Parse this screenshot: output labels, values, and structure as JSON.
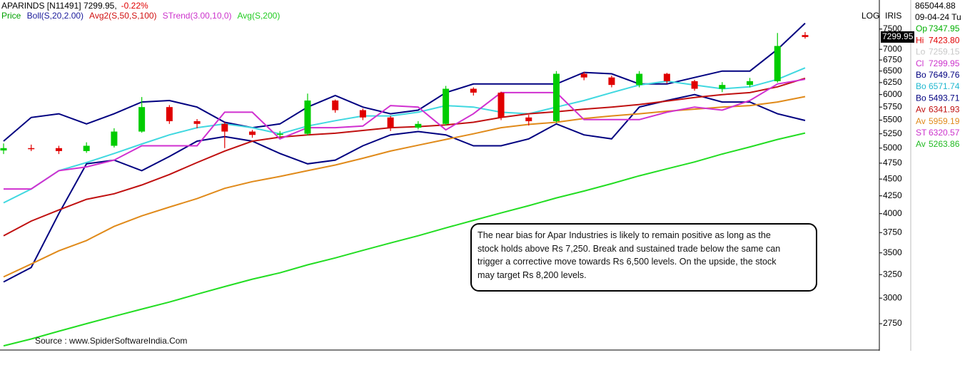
{
  "chart_data": {
    "type": "candlestick",
    "title": "APARINDS [N11491] 7299.95,",
    "change": "-0.22%",
    "scale_label": "LOG",
    "source_label": "IRIS",
    "log": true,
    "ylim": [
      2520,
      8280
    ],
    "yticks": [
      2750,
      3000,
      3250,
      3500,
      3750,
      4000,
      4250,
      4500,
      4750,
      5000,
      5250,
      5500,
      5750,
      6000,
      6250,
      6500,
      6750,
      7000,
      7500
    ],
    "price_badge": "7299.95",
    "candles": {
      "name": "Price",
      "color": "#00a000",
      "up_color": "#00cc00",
      "down_color": "#e00000",
      "open": [
        4960,
        5000,
        5000,
        4950,
        5040,
        5290,
        5750,
        5480,
        5430,
        5290,
        5230,
        5250,
        5880,
        5690,
        5550,
        5360,
        5430,
        6120,
        6040,
        5550,
        5480,
        6440,
        6360,
        6200,
        6440,
        6280,
        6120,
        6200,
        6280,
        7347.95
      ],
      "high": [
        5080,
        5060,
        5040,
        5100,
        5350,
        5950,
        5790,
        5520,
        5460,
        5320,
        5300,
        6020,
        5900,
        5720,
        5580,
        5480,
        6180,
        6150,
        6060,
        5600,
        6500,
        6480,
        6400,
        6500,
        6460,
        6310,
        6260,
        6350,
        7400,
        7423.8
      ],
      "low": [
        4900,
        4950,
        4900,
        4920,
        5010,
        5270,
        5430,
        5350,
        5000,
        5180,
        5190,
        5220,
        5640,
        5500,
        5300,
        5330,
        5400,
        5980,
        5500,
        5400,
        5450,
        6300,
        6150,
        6150,
        6230,
        6080,
        6050,
        6150,
        6250,
        7259.15
      ],
      "close": [
        5000,
        5000,
        4950,
        5040,
        5290,
        5750,
        5480,
        5430,
        5290,
        5230,
        5250,
        5880,
        5690,
        5550,
        5360,
        5430,
        6120,
        6040,
        5550,
        5480,
        6440,
        6360,
        6200,
        6440,
        6280,
        6120,
        6200,
        6280,
        7080,
        7299.95
      ]
    },
    "series": [
      {
        "name": "Boll(S,20,2.00)",
        "color": "#1a1a9a",
        "lines": [
          {
            "color": "#000080",
            "values": [
              5120,
              5550,
              5620,
              5430,
              5620,
              5850,
              5880,
              5750,
              5460,
              5360,
              5430,
              5750,
              5980,
              5750,
              5620,
              5690,
              6040,
              6220,
              6220,
              6220,
              6220,
              6470,
              6440,
              6220,
              6220,
              6360,
              6500,
              6500,
              7000,
              7649.76
            ]
          },
          {
            "color": "#40d8e0",
            "values": [
              4150,
              4350,
              4630,
              4760,
              4910,
              5070,
              5230,
              5360,
              5430,
              5360,
              5250,
              5390,
              5490,
              5580,
              5580,
              5650,
              5780,
              5750,
              5650,
              5620,
              5750,
              5880,
              6040,
              6200,
              6280,
              6200,
              6120,
              6160,
              6320,
              6571.74
            ]
          },
          {
            "color": "#000080",
            "values": [
              3170,
              3330,
              4000,
              4740,
              4800,
              4630,
              4860,
              5120,
              5200,
              5120,
              4910,
              4740,
              4800,
              5040,
              5230,
              5290,
              5230,
              5040,
              5040,
              5160,
              5430,
              5230,
              5160,
              5750,
              5880,
              6000,
              5850,
              5850,
              5620,
              5493.71
            ]
          }
        ]
      },
      {
        "name": "Avg2(S,50,S,100)",
        "color": "#d01010",
        "lines": [
          {
            "color": "#c01010",
            "values": [
              3710,
              3900,
              4050,
              4200,
              4280,
              4410,
              4570,
              4760,
              4950,
              5120,
              5190,
              5230,
              5260,
              5310,
              5360,
              5380,
              5410,
              5460,
              5550,
              5620,
              5660,
              5710,
              5750,
              5800,
              5870,
              5940,
              6000,
              6040,
              6160,
              6341.93
            ]
          },
          {
            "color": "#e08a1a",
            "values": [
              3225,
              3370,
              3525,
              3650,
              3830,
              3970,
              4090,
              4210,
              4360,
              4460,
              4540,
              4630,
              4720,
              4830,
              4950,
              5050,
              5150,
              5250,
              5360,
              5420,
              5460,
              5530,
              5580,
              5620,
              5670,
              5710,
              5750,
              5780,
              5850,
              5959.19
            ]
          }
        ]
      },
      {
        "name": "STrend(3.00,10,0)",
        "color": "#cc33cc",
        "lines": [
          {
            "color": "#d030d0",
            "values": [
              4350,
              4350,
              4630,
              4690,
              4800,
              5040,
              5040,
              5040,
              5650,
              5650,
              5160,
              5360,
              5360,
              5390,
              5780,
              5750,
              5320,
              5620,
              6040,
              6040,
              6040,
              5510,
              5510,
              5510,
              5650,
              5750,
              5690,
              5880,
              6220,
              6320.57
            ]
          }
        ]
      },
      {
        "name": "Avg(S,200)",
        "color": "#22cc22",
        "lines": [
          {
            "color": "#22dd22",
            "values": [
              2550,
              2610,
              2680,
              2750,
              2820,
              2890,
              2960,
              3040,
              3120,
              3200,
              3270,
              3360,
              3440,
              3530,
              3620,
              3710,
              3810,
              3910,
              4010,
              4110,
              4220,
              4320,
              4430,
              4550,
              4660,
              4770,
              4900,
              5020,
              5150,
              5263.86
            ]
          }
        ]
      }
    ]
  },
  "info_panel": {
    "volume": "865044.88",
    "date": "09-04-24 Tu",
    "rows": [
      {
        "label": "Op",
        "value": "7347.95",
        "color": "#00b000"
      },
      {
        "label": "Hi",
        "value": "7423.80",
        "color": "#e00000"
      },
      {
        "label": "Lo",
        "value": "7259.15",
        "color": "#c8c8c8"
      },
      {
        "label": "Cl",
        "value": "7299.95",
        "color": "#cc33cc"
      },
      {
        "label": "Bo",
        "value": "7649.76",
        "color": "#000080"
      },
      {
        "label": "Bo",
        "value": "6571.74",
        "color": "#20b8d0"
      },
      {
        "label": "Bo",
        "value": "5493.71",
        "color": "#000080"
      },
      {
        "label": "Av",
        "value": "6341.93",
        "color": "#c01010"
      },
      {
        "label": "Av",
        "value": "5959.19",
        "color": "#e08a1a"
      },
      {
        "label": "ST",
        "value": "6320.57",
        "color": "#cc33cc"
      },
      {
        "label": "Av",
        "value": "5263.86",
        "color": "#22bb22"
      }
    ]
  },
  "annotation": {
    "lines": [
      "The near bias for Apar Industries is likely to remain positive as long as the",
      "stock holds above Rs 7,250. Break and sustained trade below the same can",
      "trigger a corrective move towards Rs 6,500 levels. On the upside, the stock",
      "may target Rs 8,200 levels."
    ]
  },
  "source": "Source : www.SpiderSoftwareIndia.Com"
}
